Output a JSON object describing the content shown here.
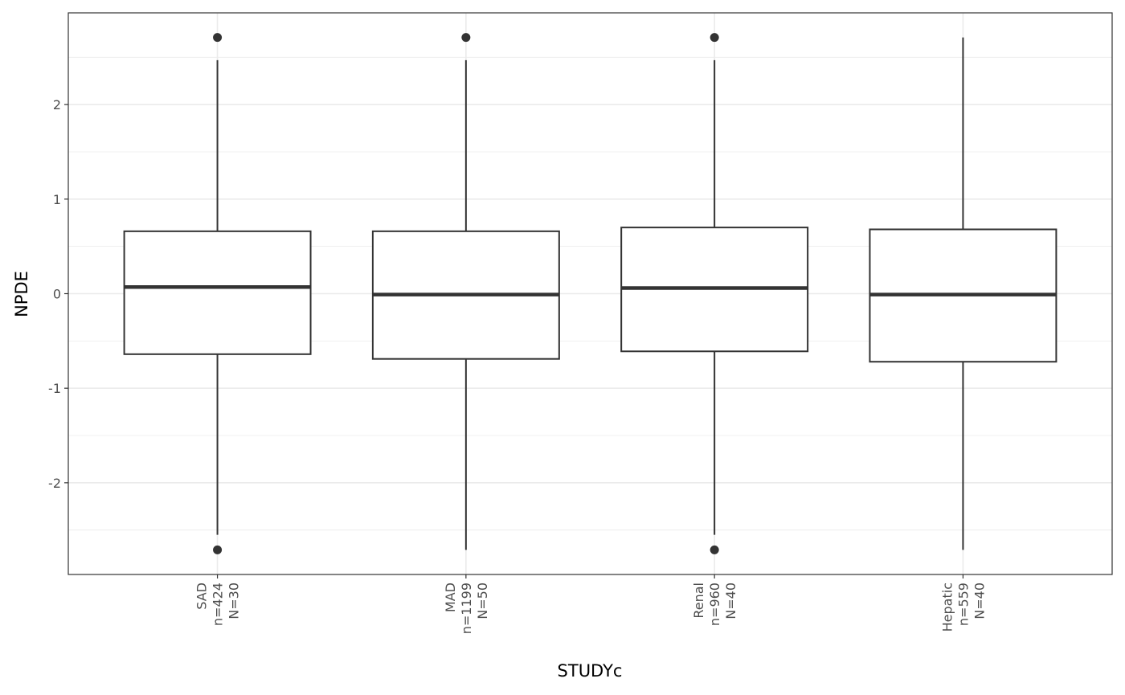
{
  "chart_data": {
    "type": "boxplot",
    "xlabel": "STUDYc",
    "ylabel": "NPDE",
    "ylim": [
      -2.97,
      2.97
    ],
    "yticks": [
      -2,
      -1,
      0,
      1,
      2
    ],
    "grid": true,
    "categories": [
      {
        "label": [
          "SAD",
          "n=424",
          "N=30"
        ],
        "q1": -0.64,
        "median": 0.07,
        "q3": 0.66,
        "whisker_low": -2.55,
        "whisker_high": 2.47,
        "outliers": [
          2.71,
          -2.71
        ]
      },
      {
        "label": [
          "MAD",
          "n=1199",
          "N=50"
        ],
        "q1": -0.69,
        "median": -0.01,
        "q3": 0.66,
        "whisker_low": -2.71,
        "whisker_high": 2.47,
        "outliers": [
          2.71
        ]
      },
      {
        "label": [
          "Renal",
          "n=960",
          "N=40"
        ],
        "q1": -0.61,
        "median": 0.06,
        "q3": 0.7,
        "whisker_low": -2.55,
        "whisker_high": 2.47,
        "outliers": [
          2.71,
          -2.71
        ]
      },
      {
        "label": [
          "Hepatic",
          "n=559",
          "N=40"
        ],
        "q1": -0.72,
        "median": -0.01,
        "q3": 0.68,
        "whisker_low": -2.71,
        "whisker_high": 2.71,
        "outliers": []
      }
    ],
    "colors": {
      "box_line": "#333333",
      "grid": "#ebebeb",
      "panel_border": "#333333"
    }
  }
}
